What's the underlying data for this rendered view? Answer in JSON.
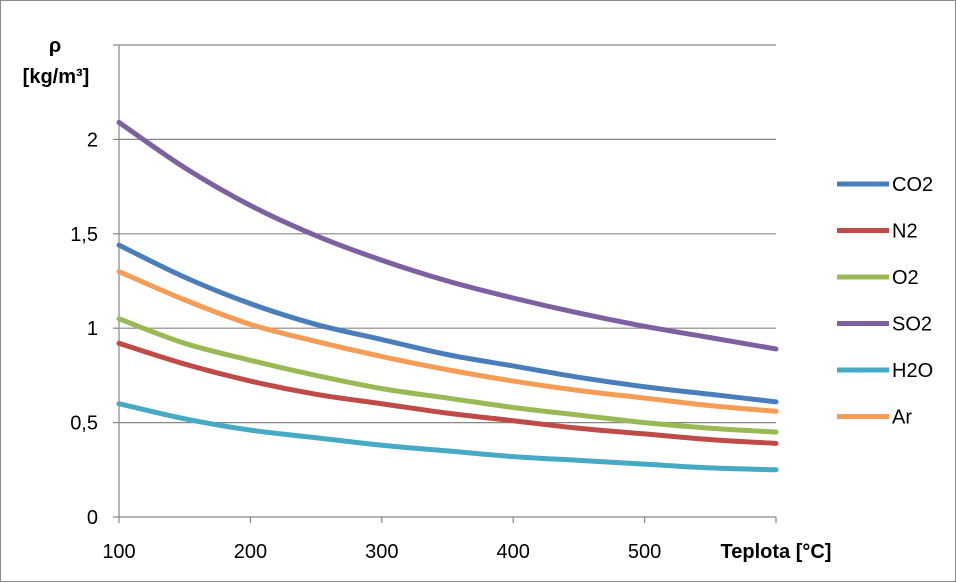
{
  "chart_data": {
    "type": "line",
    "title": "",
    "ylabel_line1": "ρ",
    "ylabel_line2": "[kg/m³]",
    "xlabel": "Teplota [°C]",
    "xlim": [
      100,
      600
    ],
    "ylim": [
      0,
      2.5
    ],
    "x_ticks": [
      100,
      200,
      300,
      400,
      500
    ],
    "y_ticks": [
      {
        "value": 0,
        "label": "0"
      },
      {
        "value": 0.5,
        "label": "0,5"
      },
      {
        "value": 1,
        "label": "1"
      },
      {
        "value": 1.5,
        "label": "1,5"
      },
      {
        "value": 2,
        "label": "2"
      }
    ],
    "grid": "horizontal",
    "legend": "right",
    "x": [
      100,
      150,
      200,
      250,
      300,
      350,
      400,
      450,
      500,
      550,
      600
    ],
    "series": [
      {
        "name": "CO2",
        "color": "#4a7ebb",
        "values": [
          1.44,
          1.27,
          1.13,
          1.02,
          0.94,
          0.86,
          0.8,
          0.74,
          0.69,
          0.65,
          0.61
        ]
      },
      {
        "name": "N2",
        "color": "#be4b48",
        "values": [
          0.92,
          0.81,
          0.72,
          0.65,
          0.6,
          0.55,
          0.51,
          0.47,
          0.44,
          0.41,
          0.39
        ]
      },
      {
        "name": "O2",
        "color": "#98b954",
        "values": [
          1.05,
          0.92,
          0.83,
          0.75,
          0.68,
          0.63,
          0.58,
          0.54,
          0.5,
          0.47,
          0.45
        ]
      },
      {
        "name": "SO2",
        "color": "#7d60a0",
        "values": [
          2.09,
          1.85,
          1.65,
          1.49,
          1.36,
          1.25,
          1.16,
          1.08,
          1.01,
          0.95,
          0.89
        ]
      },
      {
        "name": "H2O",
        "color": "#46aac5",
        "values": [
          0.6,
          0.52,
          0.46,
          0.42,
          0.38,
          0.35,
          0.32,
          0.3,
          0.28,
          0.26,
          0.25
        ]
      },
      {
        "name": "Ar",
        "color": "#f59d56",
        "values": [
          1.3,
          1.15,
          1.02,
          0.93,
          0.85,
          0.78,
          0.72,
          0.67,
          0.63,
          0.59,
          0.56
        ]
      }
    ]
  }
}
